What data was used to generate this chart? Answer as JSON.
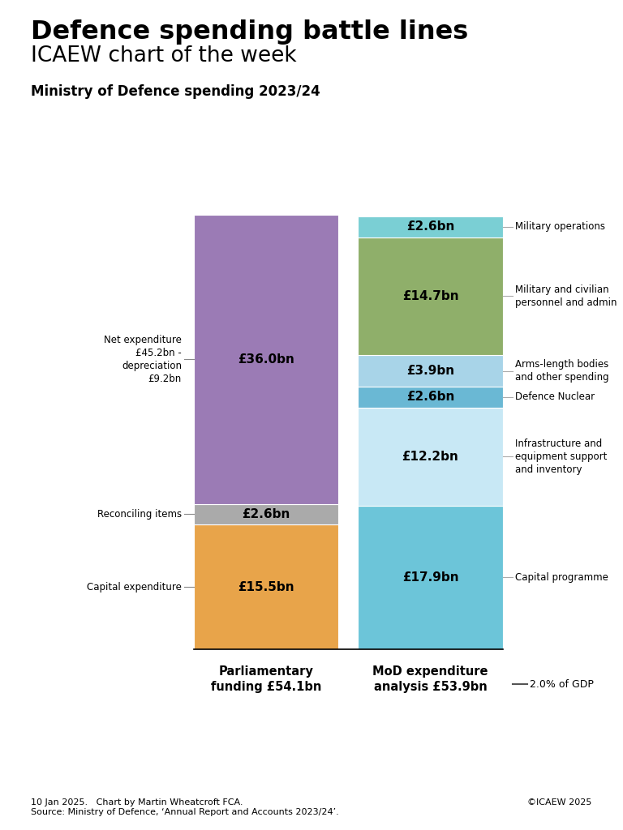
{
  "title_main": "Defence spending battle lines",
  "title_sub": "ICAEW chart of the week",
  "subtitle": "Ministry of Defence spending 2023/24",
  "left_col_label": "Parliamentary\nfunding £54.1bn",
  "right_col_label": "MoD expenditure\nanalysis £53.9bn",
  "gdp_label": "2.0% of GDP",
  "left_segments": [
    {
      "label": "Capital expenditure",
      "value": 15.5,
      "color": "#E8A44A",
      "text": "£15.5bn"
    },
    {
      "label": "Reconciling items",
      "value": 2.6,
      "color": "#AAAAAA",
      "text": "£2.6bn"
    },
    {
      "label": "Net expenditure\n£45.2bn -\ndepreciation\n£9.2bn",
      "value": 36.0,
      "color": "#9B7BB5",
      "text": "£36.0bn"
    }
  ],
  "right_segments": [
    {
      "label": "Capital programme",
      "value": 17.9,
      "color": "#6CC5D9",
      "text": "£17.9bn"
    },
    {
      "label": "Infrastructure and\nequipment support\nand inventory",
      "value": 12.2,
      "color": "#C8E8F5",
      "text": "£12.2bn"
    },
    {
      "label": "Defence Nuclear",
      "value": 2.6,
      "color": "#6AB8D4",
      "text": "£2.6bn"
    },
    {
      "label": "Arms-length bodies\nand other spending",
      "value": 3.9,
      "color": "#A8D4E8",
      "text": "£3.9bn"
    },
    {
      "label": "Military and civilian\npersonnel and admin",
      "value": 14.7,
      "color": "#8FAF6A",
      "text": "£14.7bn"
    },
    {
      "label": "Military operations",
      "value": 2.6,
      "color": "#7ACFD4",
      "text": "£2.6bn"
    }
  ],
  "footer_left": "10 Jan 2025.   Chart by Martin Wheatcroft FCA.\nSource: Ministry of Defence, ‘Annual Report and Accounts 2023/24’.",
  "footer_right": "©ICAEW 2025",
  "background_color": "#FFFFFF"
}
